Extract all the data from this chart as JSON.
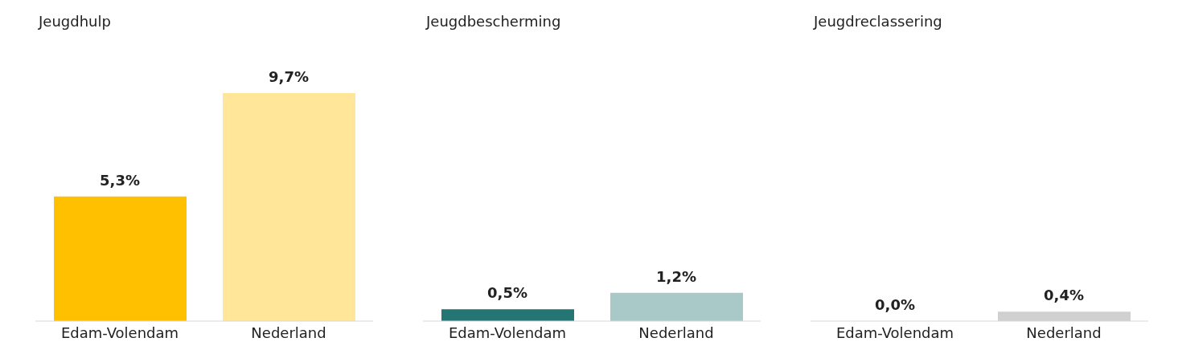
{
  "chart_data": [
    {
      "type": "bar",
      "title": "Jeugdhulp",
      "categories": [
        "Edam-Volendam",
        "Nederland"
      ],
      "values": [
        5.3,
        9.7
      ],
      "colors": [
        "#ffc000",
        "#ffe699"
      ],
      "value_labels": [
        "5,3%",
        "9,7%"
      ]
    },
    {
      "type": "bar",
      "title": "Jeugdbescherming",
      "categories": [
        "Edam-Volendam",
        "Nederland"
      ],
      "values": [
        0.5,
        1.2
      ],
      "colors": [
        "#257575",
        "#a9c8c8"
      ],
      "value_labels": [
        "0,5%",
        "1,2%"
      ]
    },
    {
      "type": "bar",
      "title": "Jeugdreclassering",
      "categories": [
        "Edam-Volendam",
        "Nederland"
      ],
      "values": [
        0.0,
        0.4
      ],
      "colors": [
        "#7f7f7f",
        "#d0d0d0"
      ],
      "value_labels": [
        "0,0%",
        "0,4%"
      ]
    }
  ]
}
